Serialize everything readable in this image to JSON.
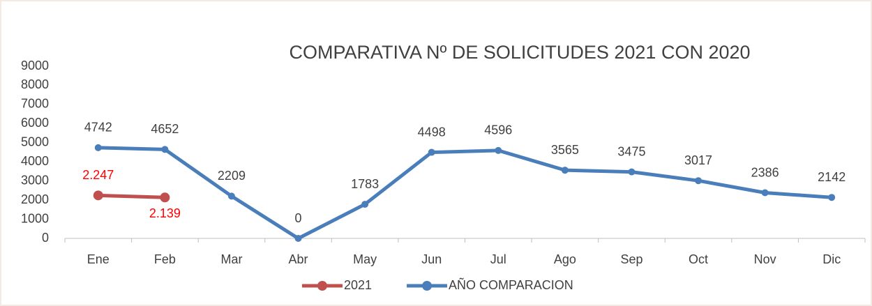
{
  "chart_data": {
    "type": "line",
    "title": "COMPARATIVA Nº DE SOLICITUDES 2021 CON 2020",
    "categories": [
      "Ene",
      "Feb",
      "Mar",
      "Abr",
      "May",
      "Jun",
      "Jul",
      "Ago",
      "Sep",
      "Oct",
      "Nov",
      "Dic"
    ],
    "series": [
      {
        "name": "2021",
        "color": "#c0504d",
        "label_color": "#ff0000",
        "values": [
          2247,
          2139,
          null,
          null,
          null,
          null,
          null,
          null,
          null,
          null,
          null,
          null
        ],
        "value_labels": [
          "2.247",
          "2.139",
          null,
          null,
          null,
          null,
          null,
          null,
          null,
          null,
          null,
          null
        ]
      },
      {
        "name": "AÑO COMPARACION",
        "color": "#4a7ebb",
        "label_color": "#404040",
        "values": [
          4742,
          4652,
          2209,
          0,
          1783,
          4498,
          4596,
          3565,
          3475,
          3017,
          2386,
          2142
        ]
      }
    ],
    "ylim": [
      0,
      9000
    ],
    "yticks": [
      0,
      1000,
      2000,
      3000,
      4000,
      5000,
      6000,
      7000,
      8000,
      9000
    ],
    "grid": false,
    "legend": "bottom"
  }
}
